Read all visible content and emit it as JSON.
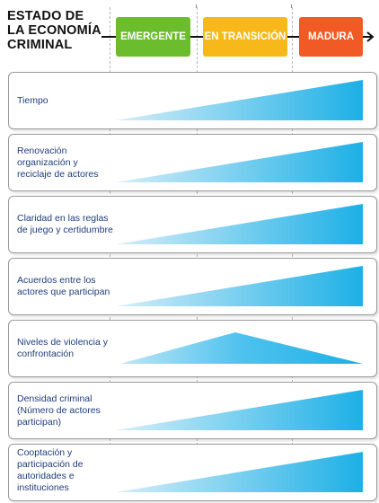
{
  "title_lines": [
    "ESTADO DE",
    "LA ECONOMÍA",
    "CRIMINAL"
  ],
  "stages": [
    {
      "label": "EMERGENTE",
      "color": "#6cbd2e"
    },
    {
      "label": "EN TRANSICIÓN",
      "color": "#f7b81a"
    },
    {
      "label": "MADURA",
      "color": "#f15a24"
    }
  ],
  "rows": [
    {
      "label": "Tiempo",
      "shape": "rising"
    },
    {
      "label": "Renovación organización y reciclaje de actores",
      "shape": "rising"
    },
    {
      "label": "Claridad en las reglas de juego y certidumbre",
      "shape": "rising"
    },
    {
      "label": "Acuerdos entre los actores que participan",
      "shape": "rising"
    },
    {
      "label": "Niveles de violencia y confrontación",
      "shape": "peak"
    },
    {
      "label": "Densidad criminal (Número de actores participan)",
      "shape": "rising"
    },
    {
      "label": "Cooptación y participación de autoridades e instituciones",
      "shape": "rising"
    }
  ],
  "colors": {
    "wedge_start": "#d6eef9",
    "wedge_end": "#1cb0e6",
    "label_text": "#1f3d7a"
  }
}
